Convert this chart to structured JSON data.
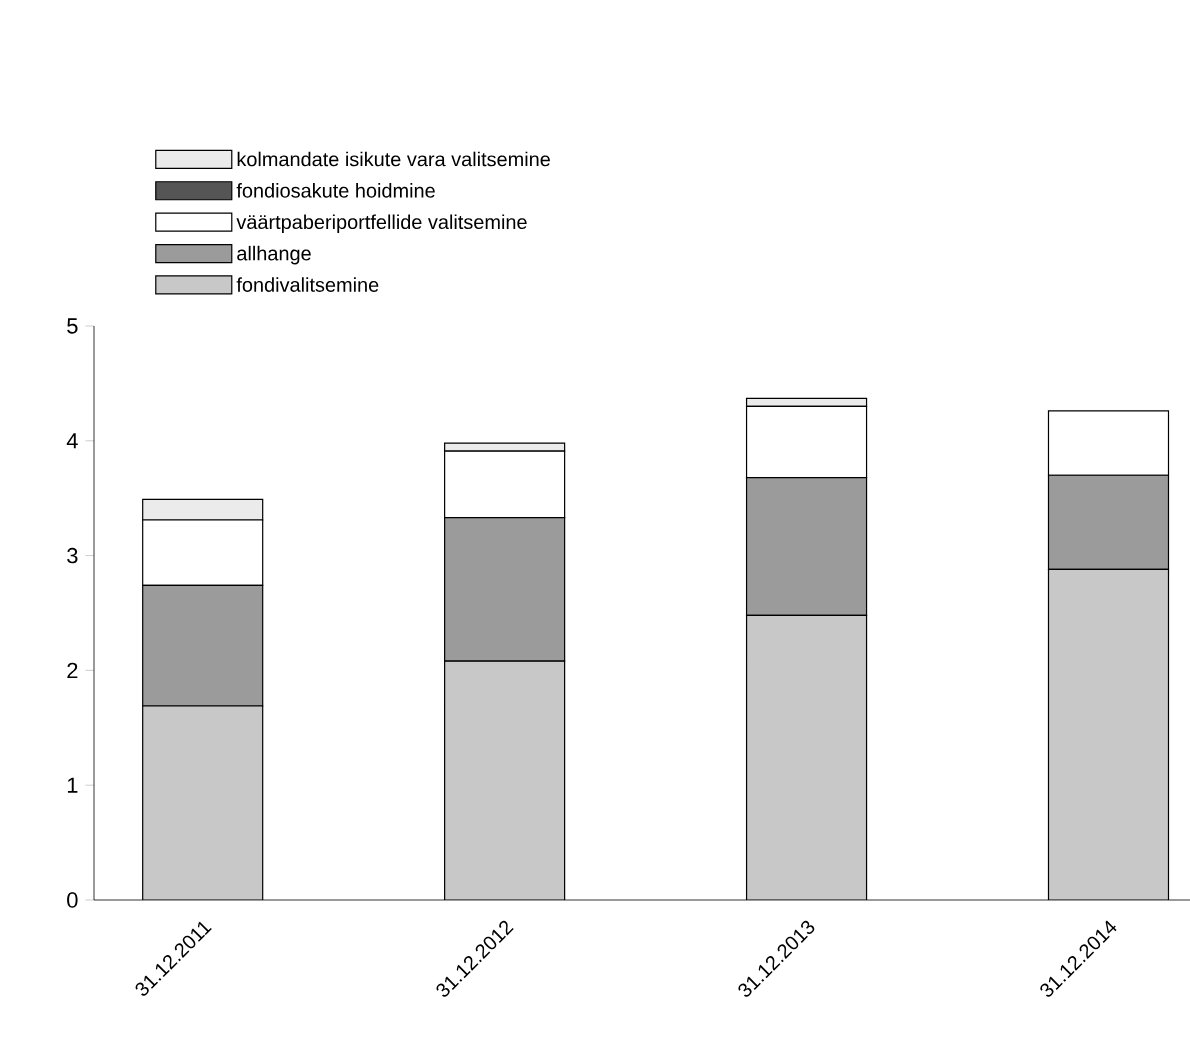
{
  "chart_data": {
    "type": "bar",
    "stacked": true,
    "legend": "top left",
    "categories": [
      "31.12.2011",
      "31.12.2012",
      "31.12.2013",
      "31.12.2014"
    ],
    "series": [
      {
        "name": "fondivalitsemine",
        "color": "#c8c8c8",
        "values": [
          1.69,
          2.08,
          2.48,
          2.88
        ]
      },
      {
        "name": "allhange",
        "color": "#9b9b9b",
        "values": [
          1.05,
          1.25,
          1.2,
          0.82
        ]
      },
      {
        "name": "väärtpaberiportfellide valitsemine",
        "color": "#ffffff",
        "values": [
          0.57,
          0.58,
          0.62,
          0.56
        ]
      },
      {
        "name": "fondiosakute hoidmine",
        "color": "#555555",
        "values": [
          null,
          0,
          null,
          0
        ]
      },
      {
        "name": "kolmandate isikute vara valitsemine",
        "color": "#ebebeb",
        "values": [
          0.18,
          0.07,
          0.07,
          0
        ]
      }
    ],
    "ylim": [
      0,
      5
    ],
    "yticks": [
      0,
      1,
      2,
      3,
      4,
      5
    ]
  }
}
